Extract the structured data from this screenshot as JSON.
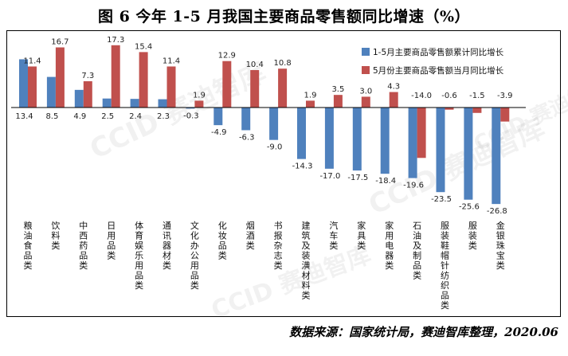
{
  "title": "图 6   今年 1-5 月我国主要商品零售额同比增速（%）",
  "source": "数据来源：国家统计局，赛迪智库整理，2020.06",
  "watermark": "CCID 赛迪智库",
  "colors": {
    "series1": "#4f81bd",
    "series2": "#c0504d",
    "axis": "#000000"
  },
  "chart_data": {
    "type": "bar",
    "title": "今年 1-5 月我国主要商品零售额同比增速（%）",
    "ylim": [
      -30,
      20
    ],
    "grid": false,
    "legend_position": "top-right",
    "categories": [
      "粮油食品类",
      "饮料类",
      "中西药品类",
      "日用品类",
      "体育娱乐用品类",
      "通讯器材类",
      "文化办公用品类",
      "化妆品类",
      "烟酒类",
      "书报杂志类",
      "建筑及装潢材料类",
      "汽车类",
      "家具类",
      "家用电器类",
      "石油及制品类",
      "服装鞋帽针纺织品类",
      "服装类",
      "金银珠宝类"
    ],
    "series": [
      {
        "name": "1-5月主要商品零售额累计同比增长",
        "values": [
          13.4,
          8.5,
          4.9,
          2.5,
          2.4,
          2.3,
          -0.3,
          -4.9,
          -6.3,
          -9.0,
          -14.3,
          -17.0,
          -17.5,
          -18.4,
          -19.6,
          -23.5,
          -25.6,
          -26.8
        ]
      },
      {
        "name": "5月份主要商品零售额当月同比增长",
        "values": [
          11.4,
          16.7,
          7.3,
          17.3,
          15.4,
          11.4,
          1.9,
          12.9,
          10.4,
          10.8,
          1.9,
          3.5,
          3.0,
          4.3,
          -14.0,
          -0.6,
          -1.5,
          -3.9
        ]
      }
    ],
    "value_labels": {
      "series1": [
        "13.4",
        "8.5",
        "4.9",
        "2.5",
        "2.4",
        "2.3",
        "-0.3",
        "-4.9",
        "-6.3",
        "-9.0",
        "-14.3",
        "-17.0",
        "-17.5",
        "-18.4",
        "-19.6",
        "-23.5",
        "-25.6",
        "-26.8"
      ],
      "series2": [
        "11.4",
        "16.7",
        "7.3",
        "17.3",
        "15.4",
        "11.4",
        "1.9",
        "12.9",
        "10.4",
        "10.8",
        "1.9",
        "3.5",
        "3.0",
        "4.3",
        "-14.0",
        "-0.6",
        "-1.5",
        "-3.9"
      ]
    }
  }
}
